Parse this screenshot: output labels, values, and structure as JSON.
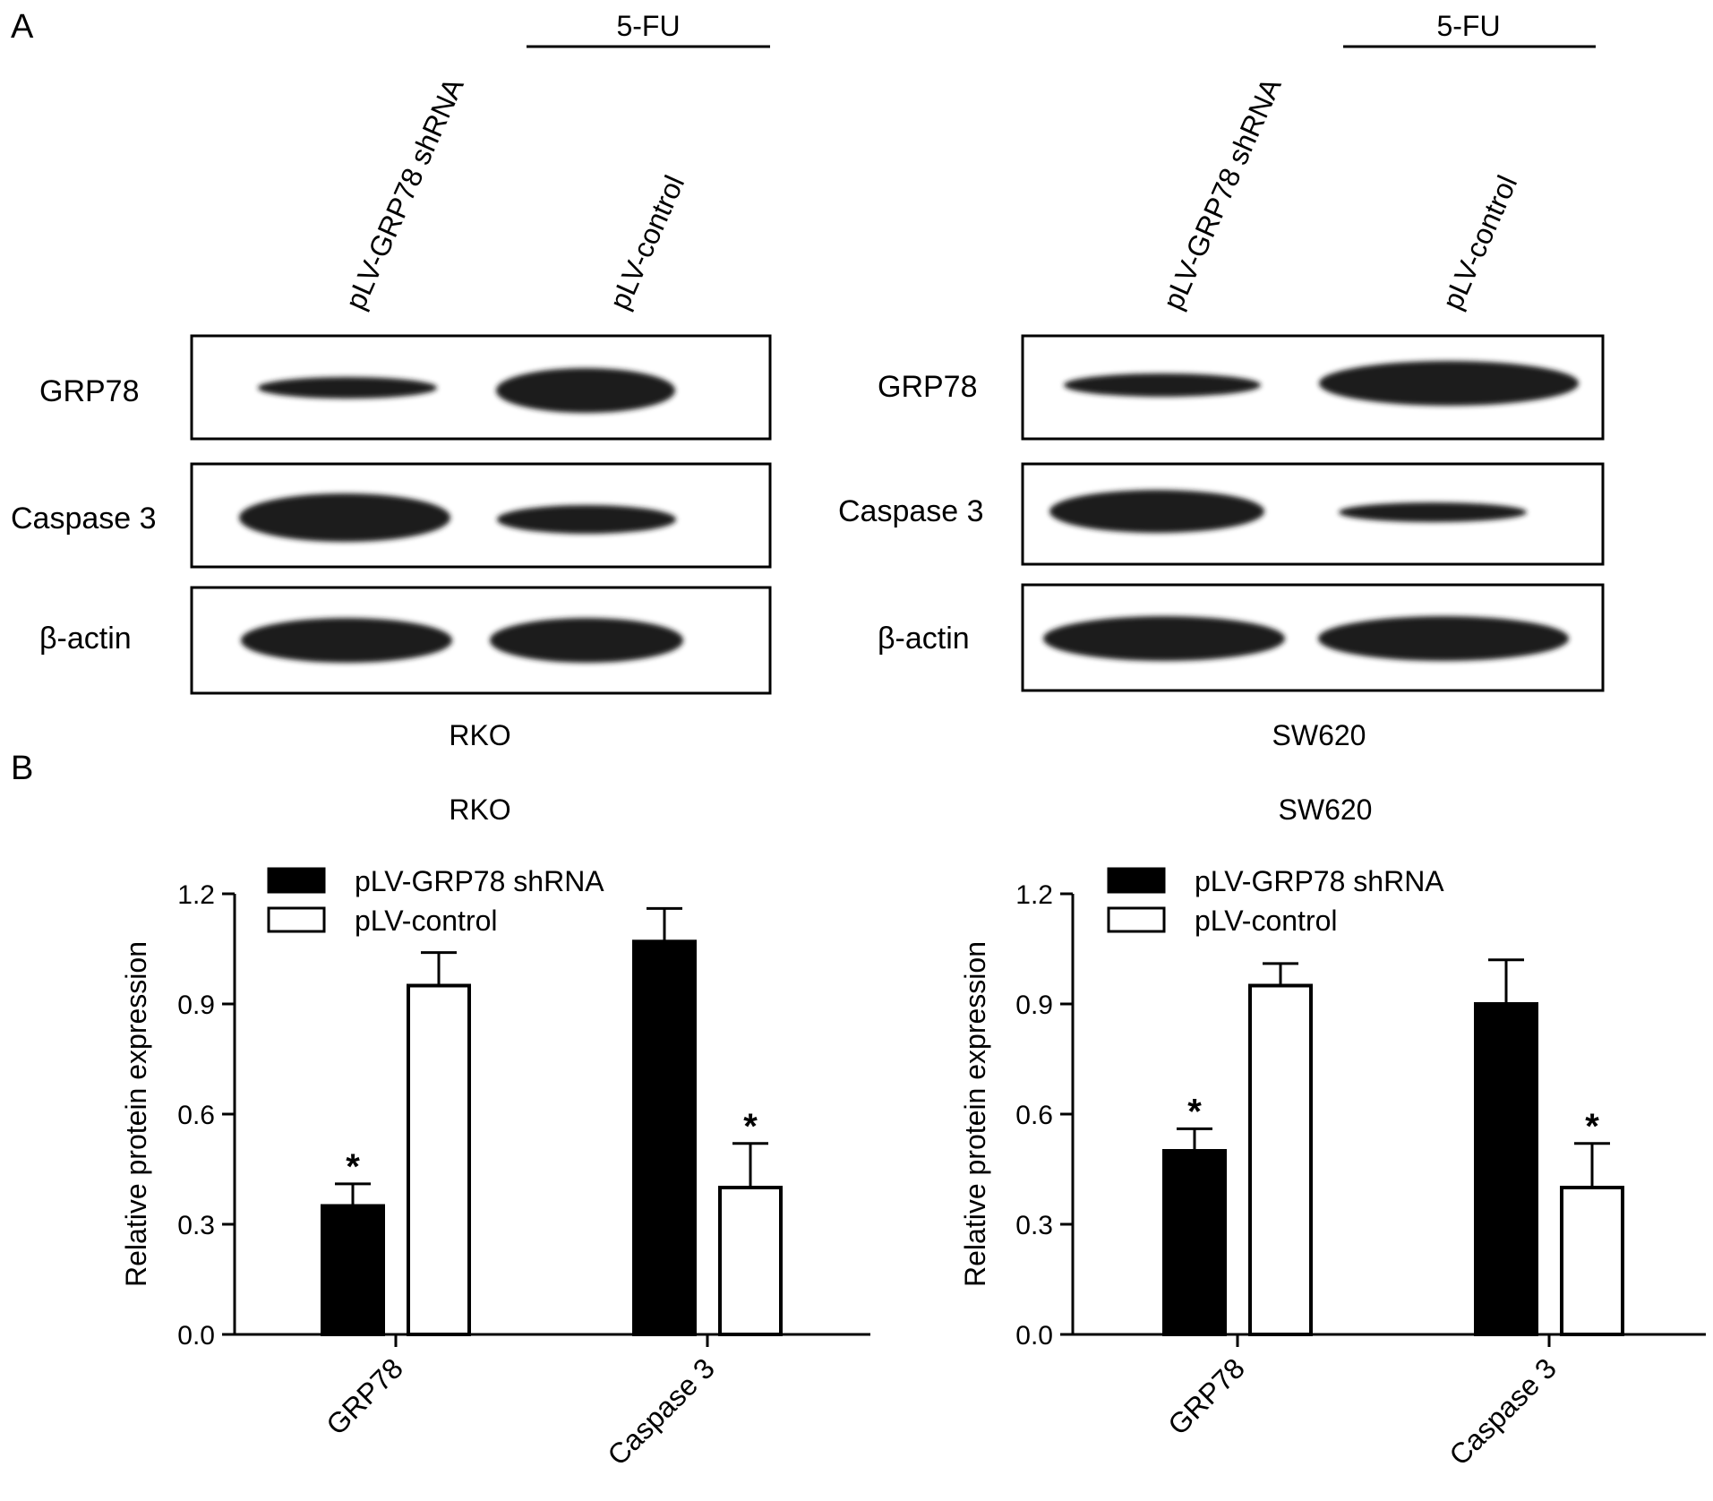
{
  "panel_a": {
    "label": "A",
    "treatment": "5-FU",
    "blots": [
      {
        "cell_line": "RKO",
        "lanes": [
          "pLV-GRP78 shRNA",
          "pLV-control"
        ],
        "rows": [
          {
            "protein": "GRP78",
            "intensity": [
              0.35,
              0.95
            ]
          },
          {
            "protein": "Caspase 3",
            "intensity": [
              1.07,
              0.4
            ]
          },
          {
            "protein": "β-actin",
            "intensity": [
              1.0,
              1.0
            ]
          }
        ]
      },
      {
        "cell_line": "SW620",
        "lanes": [
          "pLV-GRP78 shRNA",
          "pLV-control"
        ],
        "rows": [
          {
            "protein": "GRP78",
            "intensity": [
              0.5,
              0.95
            ]
          },
          {
            "protein": "Caspase 3",
            "intensity": [
              0.9,
              0.4
            ]
          },
          {
            "protein": "β-actin",
            "intensity": [
              1.0,
              1.0
            ]
          }
        ]
      }
    ]
  },
  "panel_b": {
    "label": "B"
  },
  "colors": {
    "shrna_fill": "#000000",
    "control_fill": "#ffffff",
    "band": "#1a1a1a"
  },
  "chart_data": [
    {
      "type": "bar",
      "title": "RKO",
      "xlabel": "",
      "ylabel": "Relative protein expression",
      "categories": [
        "GRP78",
        "Caspase 3"
      ],
      "ylim": [
        0,
        1.2
      ],
      "yticks": [
        "0.0",
        "0.3",
        "0.6",
        "0.9",
        "1.2"
      ],
      "series": [
        {
          "name": "pLV-GRP78 shRNA",
          "values": [
            0.35,
            1.07
          ],
          "errors": [
            0.06,
            0.09
          ],
          "significance": [
            "*",
            ""
          ]
        },
        {
          "name": "pLV-control",
          "values": [
            0.95,
            0.4
          ],
          "errors": [
            0.09,
            0.12
          ],
          "significance": [
            "",
            "*"
          ]
        }
      ],
      "legend": "top-left",
      "grid": false
    },
    {
      "type": "bar",
      "title": "SW620",
      "xlabel": "",
      "ylabel": "Relative protein expression",
      "categories": [
        "GRP78",
        "Caspase 3"
      ],
      "ylim": [
        0,
        1.2
      ],
      "yticks": [
        "0.0",
        "0.3",
        "0.6",
        "0.9",
        "1.2"
      ],
      "series": [
        {
          "name": "pLV-GRP78 shRNA",
          "values": [
            0.5,
            0.9
          ],
          "errors": [
            0.06,
            0.12
          ],
          "significance": [
            "*",
            ""
          ]
        },
        {
          "name": "pLV-control",
          "values": [
            0.95,
            0.4
          ],
          "errors": [
            0.06,
            0.12
          ],
          "significance": [
            "",
            "*"
          ]
        }
      ],
      "legend": "top-left",
      "grid": false
    }
  ]
}
